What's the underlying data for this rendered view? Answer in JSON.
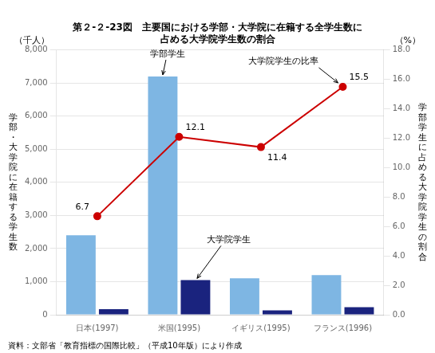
{
  "chart_data": {
    "type": "bar",
    "title": [
      "第２-２-23図　主要国における学部・大学院に在籍する全学生数に",
      "占める大学院学生数の割合"
    ],
    "categories": [
      "日本(1997)",
      "米国(1995)",
      "イギリス(1995)",
      "フランス(1996)"
    ],
    "series": [
      {
        "name": "学部学生",
        "color": "#7eb6e3",
        "values": [
          2400,
          7200,
          1100,
          1200
        ]
      },
      {
        "name": "大学院学生",
        "color": "#1a237e",
        "values": [
          170,
          1050,
          130,
          230
        ]
      },
      {
        "name": "大学院学生の比率",
        "type": "line",
        "axis": "y2",
        "color": "#cc0000",
        "marker": "circle",
        "data_labels": true,
        "values": [
          6.7,
          12.1,
          11.4,
          15.5
        ]
      }
    ],
    "ylim": [
      0,
      8000
    ],
    "yticks": [
      0,
      {
        "value": 1000,
        "label": "1,000"
      },
      {
        "value": 2000,
        "label": "2,000"
      },
      {
        "value": 3000,
        "label": "3,000"
      },
      {
        "value": 4000,
        "label": "4,000"
      },
      {
        "value": 5000,
        "label": "5,000"
      },
      {
        "value": 6000,
        "label": "6,000"
      },
      {
        "value": 7000,
        "label": "7,000"
      },
      {
        "value": 8000,
        "label": "8,000"
      }
    ],
    "y2lim": [
      0,
      18.0
    ],
    "y2ticks": [
      {
        "value": 0,
        "label": "0.0"
      },
      {
        "value": 2,
        "label": "2.0"
      },
      {
        "value": 4,
        "label": "4.0"
      },
      {
        "value": 6,
        "label": "6.0"
      },
      {
        "value": 8,
        "label": "8.0"
      },
      {
        "value": 10,
        "label": "10.0"
      },
      {
        "value": 12,
        "label": "12.0"
      },
      {
        "value": 14,
        "label": "14.0"
      },
      {
        "value": 16,
        "label": "16.0"
      },
      {
        "value": 18,
        "label": "18.0"
      }
    ],
    "ylabel": "学部・大学院に在籍する学生数",
    "y2label": "学部学生に占める大学院学生の割合",
    "yunit": "（千人）",
    "y2unit": "（%）",
    "source": "資料：文部省「教育指標の国際比較」（平成10年版）により作成",
    "grid": true
  }
}
